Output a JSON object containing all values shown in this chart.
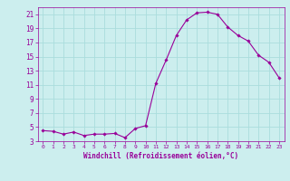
{
  "x": [
    0,
    1,
    2,
    3,
    4,
    5,
    6,
    7,
    8,
    9,
    10,
    11,
    12,
    13,
    14,
    15,
    16,
    17,
    18,
    19,
    20,
    21,
    22,
    23
  ],
  "y": [
    4.5,
    4.4,
    4.0,
    4.3,
    3.8,
    4.0,
    4.0,
    4.1,
    3.5,
    4.8,
    5.2,
    11.2,
    14.5,
    18.0,
    20.2,
    21.2,
    21.3,
    21.0,
    19.2,
    18.0,
    17.2,
    15.2,
    14.2,
    12.0
  ],
  "line_color": "#990099",
  "marker_color": "#990099",
  "bg_color": "#cceeee",
  "grid_color": "#aadddd",
  "xlabel": "Windchill (Refroidissement éolien,°C)",
  "xlabel_color": "#990099",
  "tick_color": "#990099",
  "ylim": [
    3,
    22
  ],
  "xlim": [
    -0.5,
    23.5
  ],
  "yticks": [
    3,
    5,
    7,
    9,
    11,
    13,
    15,
    17,
    19,
    21
  ],
  "xticks": [
    0,
    1,
    2,
    3,
    4,
    5,
    6,
    7,
    8,
    9,
    10,
    11,
    12,
    13,
    14,
    15,
    16,
    17,
    18,
    19,
    20,
    21,
    22,
    23
  ]
}
